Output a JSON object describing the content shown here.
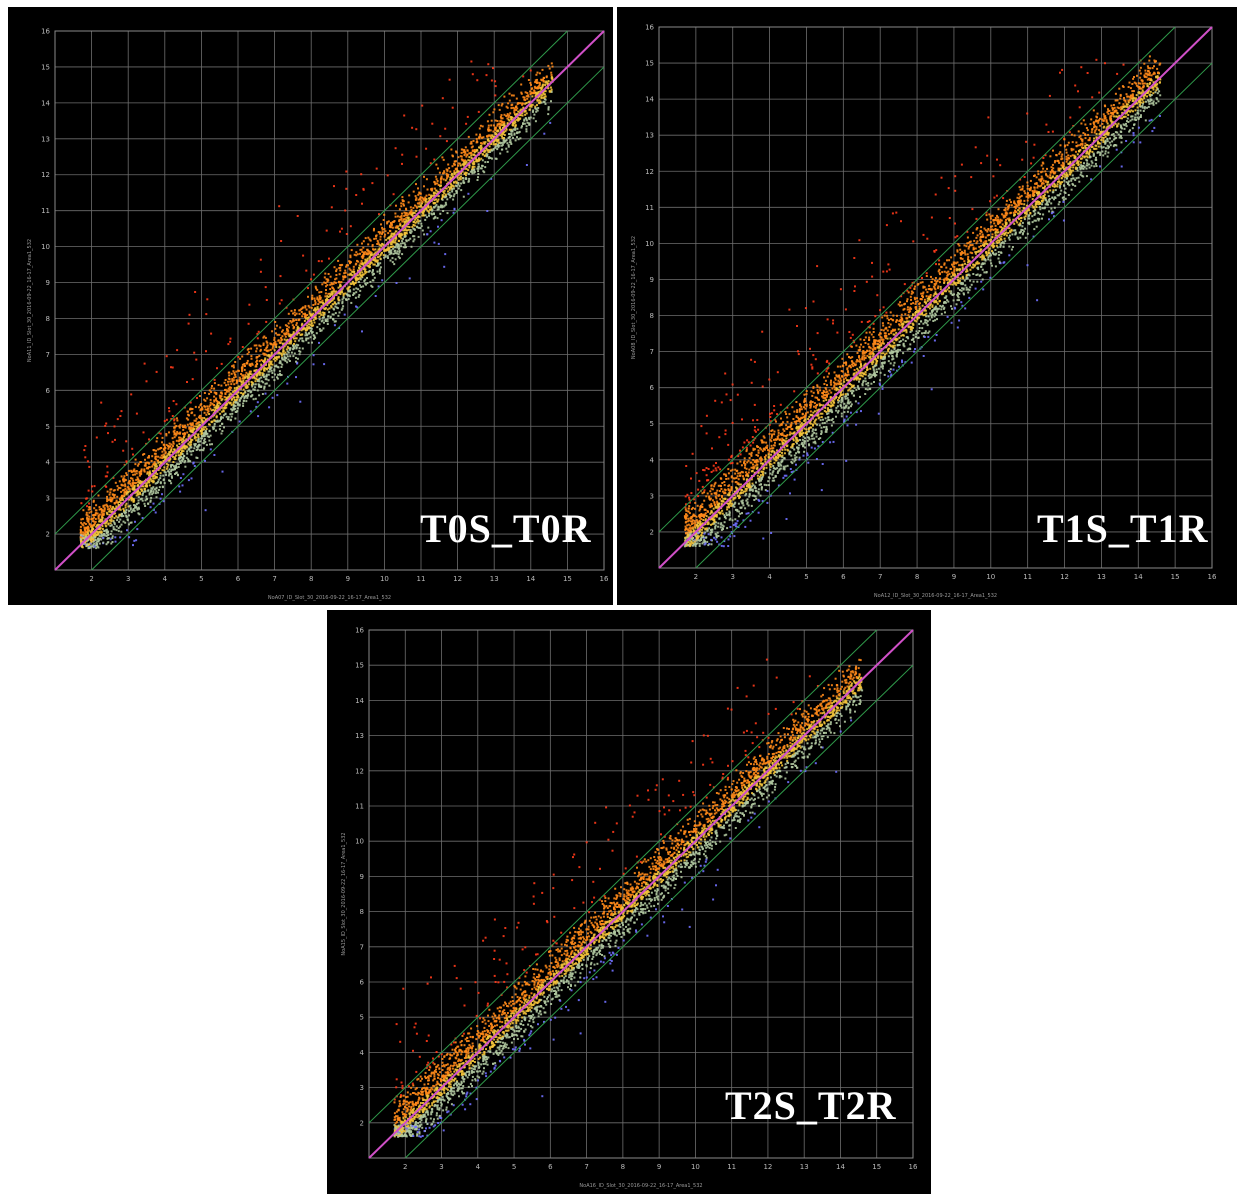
{
  "chart_data": [
    {
      "type": "scatter",
      "title": "T0S_T0R",
      "xlabel": "NoA07_ID_Slot_30_2016-09-22_16-17_Area1_532",
      "ylabel": "NoA11_ID_Slot_30_2016-09-22_16-17_Area1_532",
      "xlim": [
        1,
        16
      ],
      "ylim": [
        1,
        16
      ],
      "x_ticks": [
        "2",
        "3",
        "4",
        "5",
        "6",
        "7",
        "8",
        "9",
        "10",
        "11",
        "12",
        "13",
        "14",
        "15",
        "16"
      ],
      "y_ticks": [
        "2",
        "3",
        "4",
        "5",
        "6",
        "7",
        "8",
        "9",
        "10",
        "11",
        "12",
        "13",
        "14",
        "15",
        "16"
      ],
      "grid": true,
      "reference_lines": [
        {
          "name": "identity",
          "intercept": 0,
          "color": "#d050c8"
        },
        {
          "name": "upper fold-change",
          "intercept": 1,
          "color": "#2f9a4a"
        },
        {
          "name": "lower fold-change",
          "intercept": -1,
          "color": "#2f9a4a"
        }
      ],
      "point_colors": {
        "up": "#ff3a1a",
        "high": "#ff8a1a",
        "mid": "#f2c23a",
        "low": "#b0c8a0",
        "down": "#7070ff"
      },
      "distribution": {
        "x_range": [
          1.7,
          14.6
        ],
        "spread": 0.32
      }
    },
    {
      "type": "scatter",
      "title": "T1S_T1R",
      "xlabel": "NoA12_ID_Slot_30_2016-09-22_16-17_Area1_532",
      "ylabel": "NoA08_ID_Slot_30_2016-09-22_16-17_Area1_532",
      "xlim": [
        1,
        16
      ],
      "ylim": [
        1,
        16
      ],
      "x_ticks": [
        "2",
        "3",
        "4",
        "5",
        "6",
        "7",
        "8",
        "9",
        "10",
        "11",
        "12",
        "13",
        "14",
        "15",
        "16"
      ],
      "y_ticks": [
        "2",
        "3",
        "4",
        "5",
        "6",
        "7",
        "8",
        "9",
        "10",
        "11",
        "12",
        "13",
        "14",
        "15",
        "16"
      ],
      "grid": true,
      "reference_lines": [
        {
          "name": "identity",
          "intercept": 0,
          "color": "#d050c8"
        },
        {
          "name": "upper fold-change",
          "intercept": 1,
          "color": "#2f9a4a"
        },
        {
          "name": "lower fold-change",
          "intercept": -1,
          "color": "#2f9a4a"
        }
      ],
      "point_colors": {
        "up": "#ff3a1a",
        "high": "#ff8a1a",
        "mid": "#f2c23a",
        "low": "#b0c8a0",
        "down": "#7070ff"
      },
      "distribution": {
        "x_range": [
          1.7,
          14.6
        ],
        "spread": 0.38
      }
    },
    {
      "type": "scatter",
      "title": "T2S_T2R",
      "xlabel": "NoA16_ID_Slot_30_2016-09-22_16-17_Area1_532",
      "ylabel": "NoA15_ID_Slot_30_2016-09-22_16-17_Area1_532",
      "xlim": [
        1,
        16
      ],
      "ylim": [
        1,
        16
      ],
      "x_ticks": [
        "2",
        "3",
        "4",
        "5",
        "6",
        "7",
        "8",
        "9",
        "10",
        "11",
        "12",
        "13",
        "14",
        "15",
        "16"
      ],
      "y_ticks": [
        "2",
        "3",
        "4",
        "5",
        "6",
        "7",
        "8",
        "9",
        "10",
        "11",
        "12",
        "13",
        "14",
        "15",
        "16"
      ],
      "grid": true,
      "reference_lines": [
        {
          "name": "identity",
          "intercept": 0,
          "color": "#d050c8"
        },
        {
          "name": "upper fold-change",
          "intercept": 1,
          "color": "#2f9a4a"
        },
        {
          "name": "lower fold-change",
          "intercept": -1,
          "color": "#2f9a4a"
        }
      ],
      "point_colors": {
        "up": "#ff3a1a",
        "high": "#ff8a1a",
        "mid": "#f2c23a",
        "low": "#b0c8a0",
        "down": "#7070ff"
      },
      "distribution": {
        "x_range": [
          1.7,
          14.6
        ],
        "spread": 0.35
      }
    }
  ]
}
